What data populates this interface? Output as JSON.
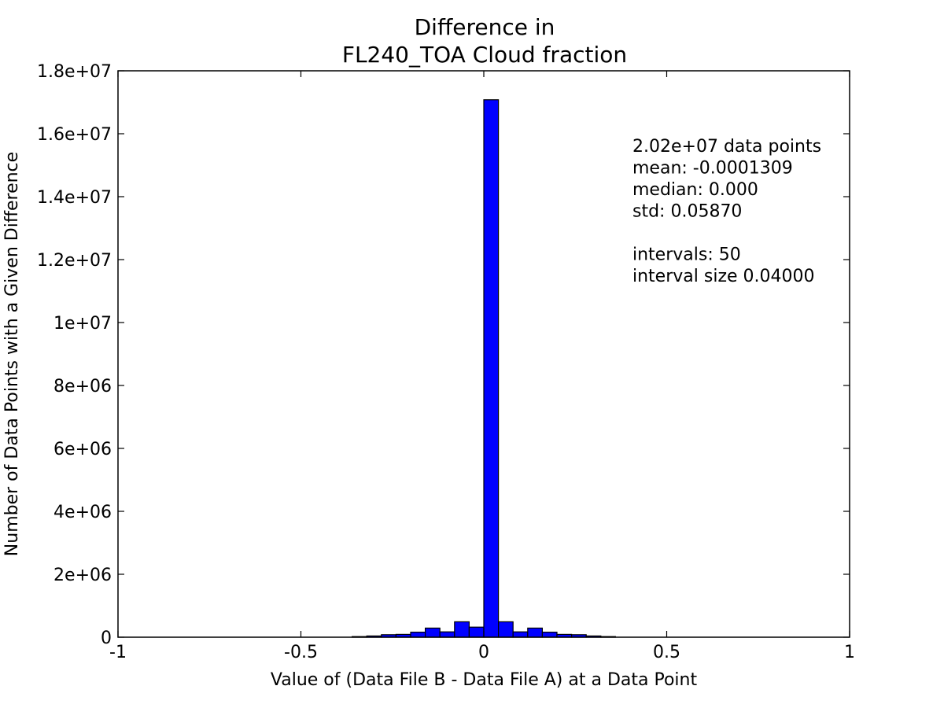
{
  "chart_data": {
    "type": "bar",
    "title_lines": [
      "Difference in",
      "FL240_TOA Cloud fraction"
    ],
    "xlabel": "Value of (Data File B - Data File A) at a Data Point",
    "ylabel": "Number of Data Points with a Given Difference",
    "xlim": [
      -1,
      1
    ],
    "ylim": [
      0,
      18000000
    ],
    "x_ticks": [
      -1,
      -0.5,
      0,
      0.5,
      1
    ],
    "x_tick_labels": [
      "-1",
      "-0.5",
      "0",
      "0.5",
      "1"
    ],
    "y_ticks": [
      0,
      2000000,
      4000000,
      6000000,
      8000000,
      10000000,
      12000000,
      14000000,
      16000000,
      18000000
    ],
    "y_tick_labels": [
      "0",
      "2e+06",
      "4e+06",
      "6e+06",
      "8e+06",
      "1e+07",
      "1.2e+07",
      "1.4e+07",
      "1.6e+07",
      "1.8e+07"
    ],
    "grid": false,
    "bar_color": "#0000ff",
    "bin_width": 0.04,
    "bins": [
      {
        "x": -0.36,
        "value": 20000
      },
      {
        "x": -0.32,
        "value": 40000
      },
      {
        "x": -0.28,
        "value": 80000
      },
      {
        "x": -0.24,
        "value": 90000
      },
      {
        "x": -0.2,
        "value": 160000
      },
      {
        "x": -0.16,
        "value": 290000
      },
      {
        "x": -0.12,
        "value": 170000
      },
      {
        "x": -0.08,
        "value": 490000
      },
      {
        "x": -0.04,
        "value": 320000
      },
      {
        "x": 0.0,
        "value": 17080000
      },
      {
        "x": 0.04,
        "value": 490000
      },
      {
        "x": 0.08,
        "value": 170000
      },
      {
        "x": 0.12,
        "value": 290000
      },
      {
        "x": 0.16,
        "value": 160000
      },
      {
        "x": 0.2,
        "value": 90000
      },
      {
        "x": 0.24,
        "value": 80000
      },
      {
        "x": 0.28,
        "value": 40000
      },
      {
        "x": 0.32,
        "value": 20000
      }
    ],
    "annotations": [
      "2.02e+07 data points",
      "mean: -0.0001309",
      "median: 0.000",
      "std: 0.05870",
      "",
      "intervals: 50",
      "interval size 0.04000"
    ]
  }
}
